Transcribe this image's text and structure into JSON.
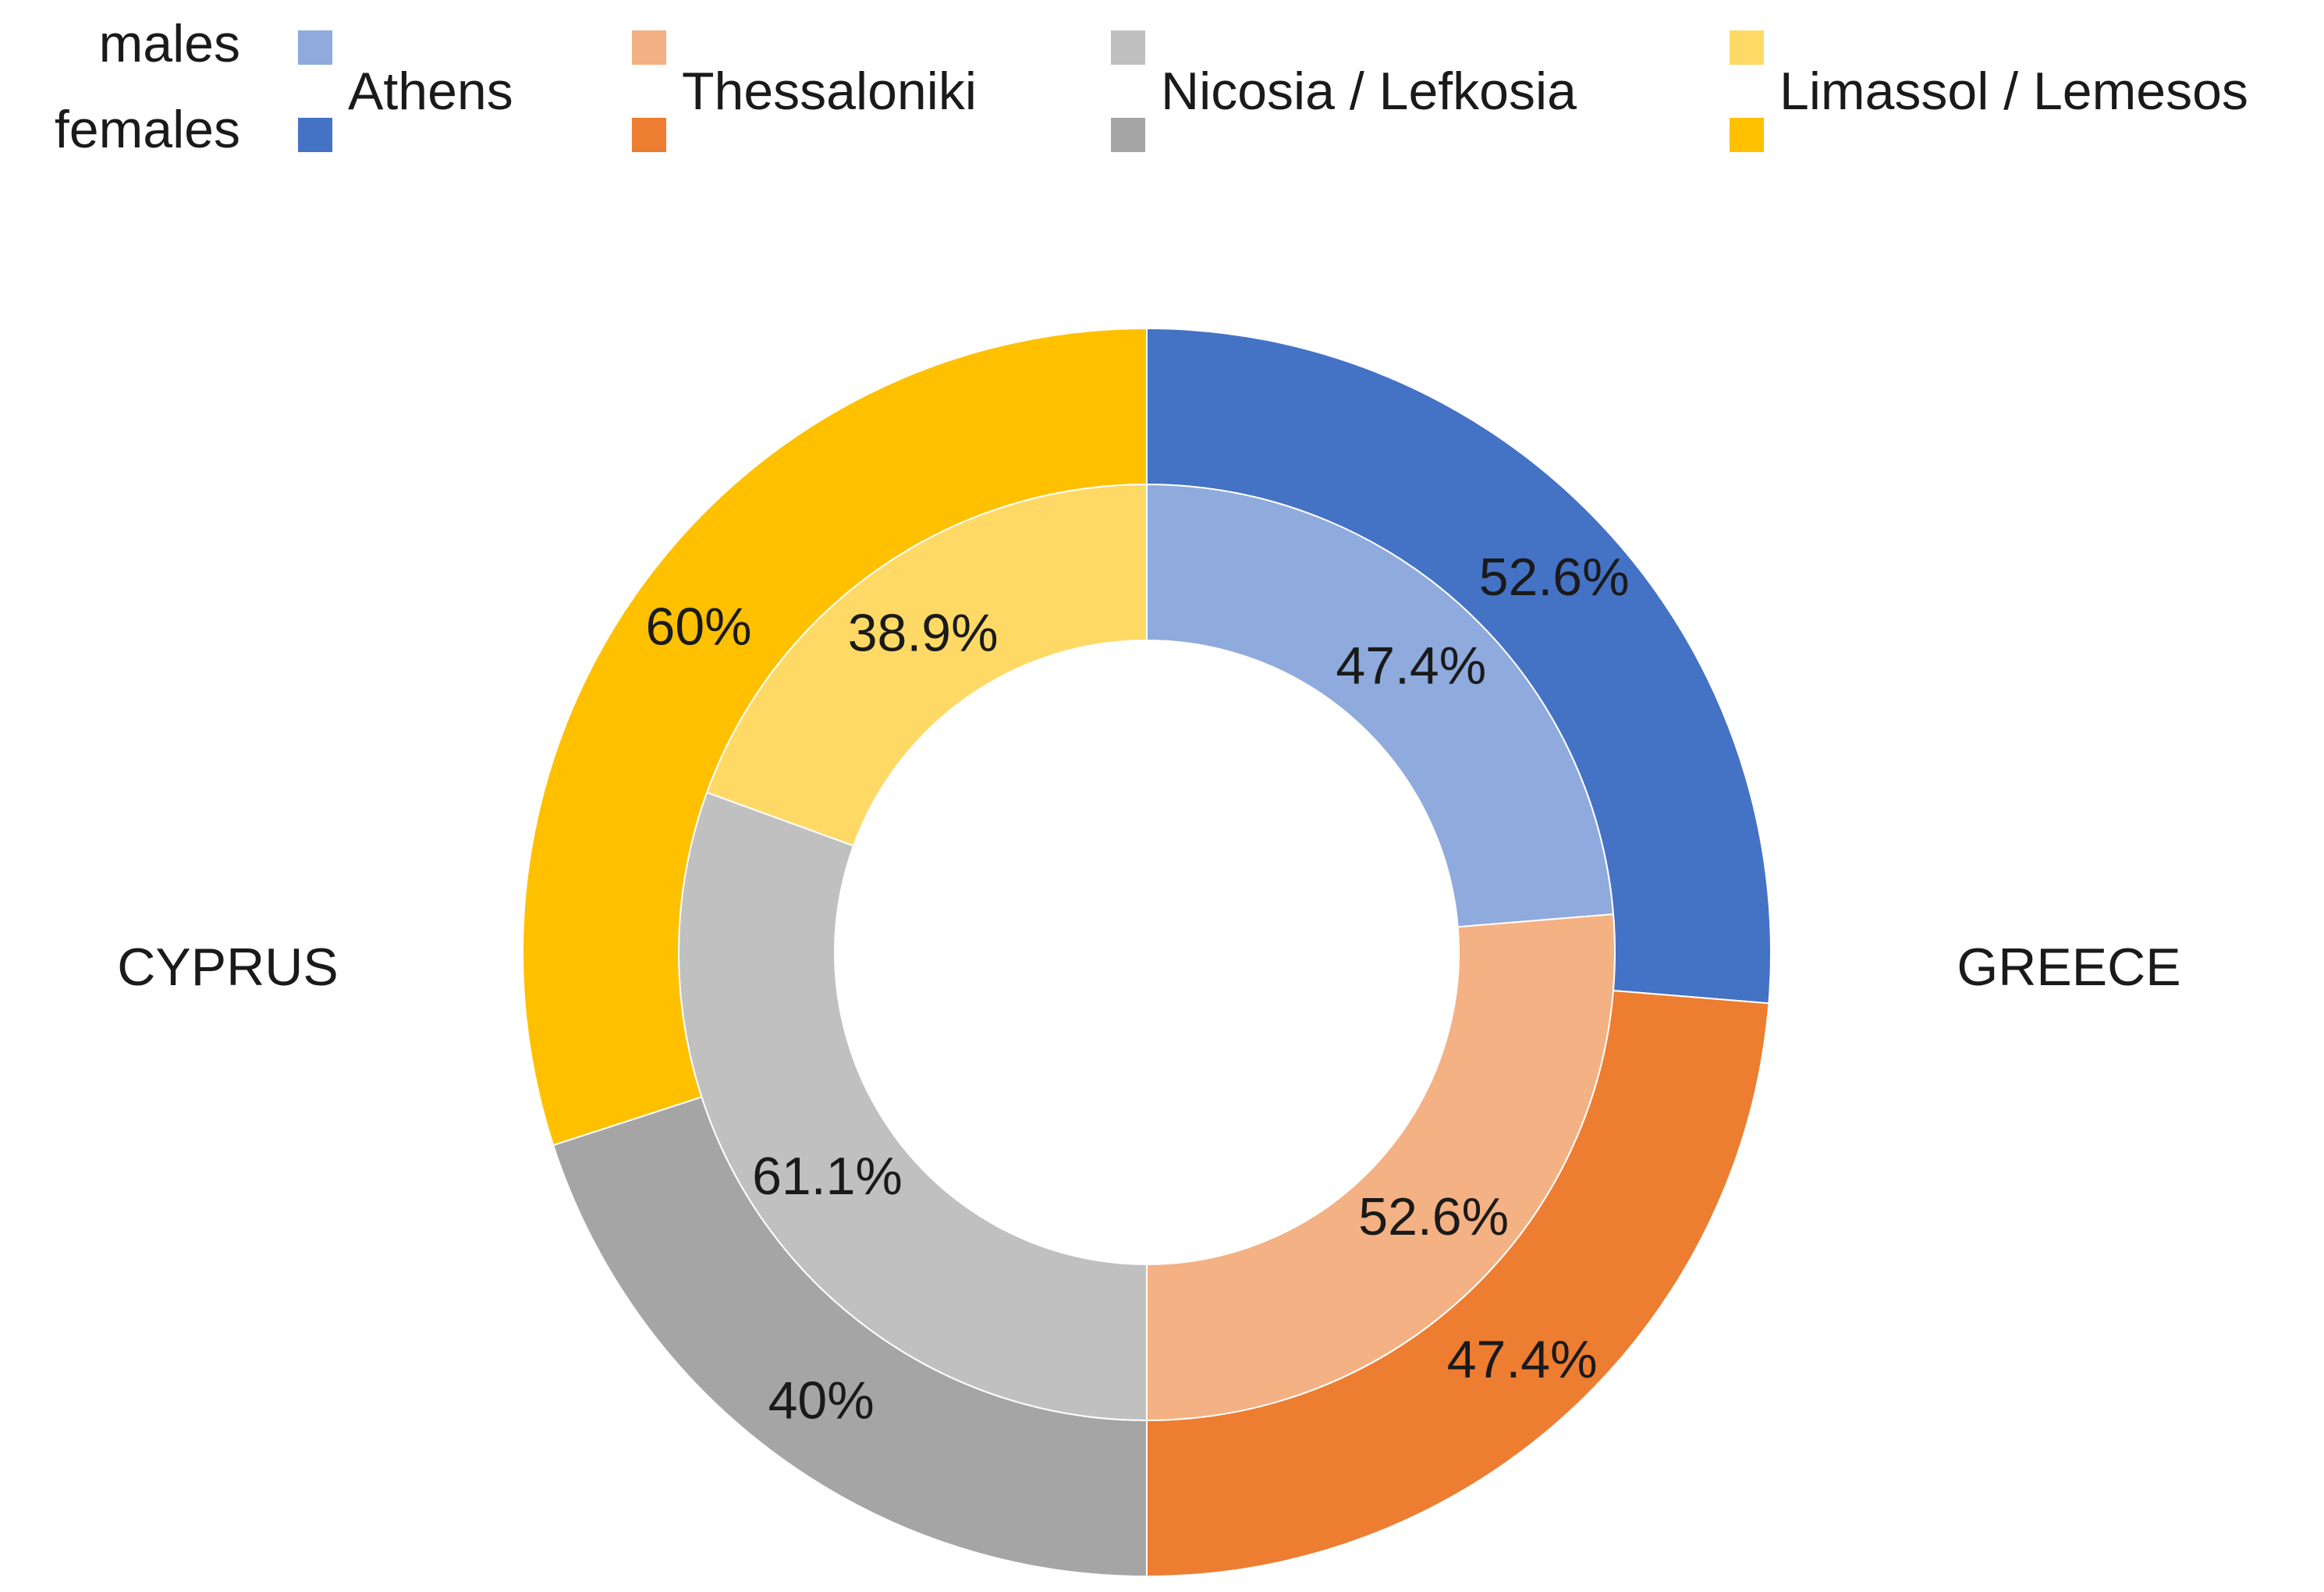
{
  "chart_data": {
    "type": "pie",
    "subtype": "double-donut",
    "legend": {
      "row_labels": [
        "males",
        "females"
      ],
      "entries": [
        {
          "name": "Athens",
          "male_color": "#8FAADC",
          "female_color": "#4472C4"
        },
        {
          "name": "Thessaloniki",
          "male_color": "#F4B183",
          "female_color": "#ED7D31"
        },
        {
          "name": "Nicosia / Lefkosia",
          "male_color": "#C0C0C0",
          "female_color": "#A5A5A5"
        },
        {
          "name": "Limassol / Lemesos",
          "male_color": "#FFD966",
          "female_color": "#FFC000"
        }
      ]
    },
    "side_labels": {
      "left": "CYPRUS",
      "right": "GREECE"
    },
    "rings": [
      {
        "name": "males",
        "ring": "inner",
        "slices": [
          {
            "city": "Athens",
            "country": "GREECE",
            "value": 47.4,
            "label": "47.4%",
            "color": "#8FAADC"
          },
          {
            "city": "Thessaloniki",
            "country": "GREECE",
            "value": 52.6,
            "label": "52.6%",
            "color": "#F4B183"
          },
          {
            "city": "Nicosia / Lefkosia",
            "country": "CYPRUS",
            "value": 61.1,
            "label": "61.1%",
            "color": "#C0C0C0"
          },
          {
            "city": "Limassol / Lemesos",
            "country": "CYPRUS",
            "value": 38.9,
            "label": "38.9%",
            "color": "#FFD966"
          }
        ]
      },
      {
        "name": "females",
        "ring": "outer",
        "slices": [
          {
            "city": "Athens",
            "country": "GREECE",
            "value": 52.6,
            "label": "52.6%",
            "color": "#4472C4"
          },
          {
            "city": "Thessaloniki",
            "country": "GREECE",
            "value": 47.4,
            "label": "47.4%",
            "color": "#ED7D31"
          },
          {
            "city": "Nicosia / Lefkosia",
            "country": "CYPRUS",
            "value": 40,
            "label": "40%",
            "color": "#A5A5A5"
          },
          {
            "city": "Limassol / Lemesos",
            "country": "CYPRUS",
            "value": 60,
            "label": "60%",
            "color": "#FFC000"
          }
        ]
      }
    ]
  }
}
